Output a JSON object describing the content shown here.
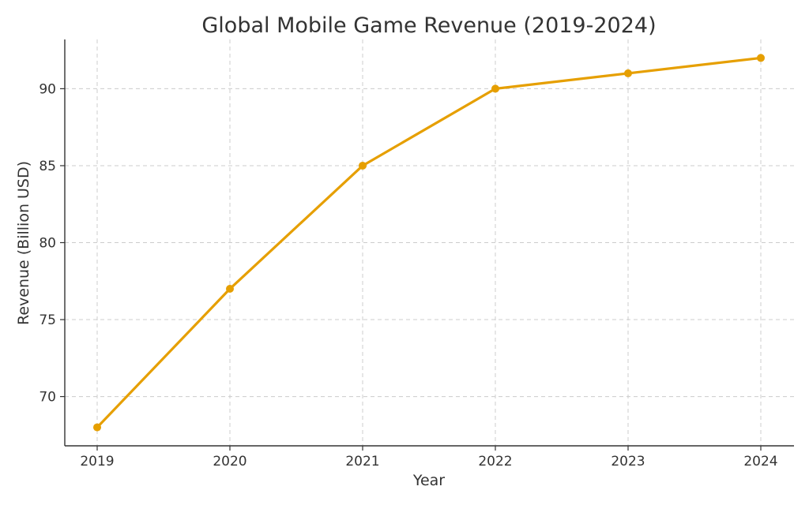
{
  "chart_data": {
    "type": "line",
    "title": "Global Mobile Game Revenue (2019-2024)",
    "xlabel": "Year",
    "ylabel": "Revenue (Billion USD)",
    "categories": [
      "2019",
      "2020",
      "2021",
      "2022",
      "2023",
      "2024"
    ],
    "series": [
      {
        "values": [
          68,
          77,
          85,
          90,
          91,
          92
        ],
        "color": "#e69f00"
      }
    ],
    "yticks": [
      70,
      75,
      80,
      85,
      90
    ],
    "ylim": [
      66.8,
      93.2
    ],
    "grid": true,
    "legend": "none"
  }
}
